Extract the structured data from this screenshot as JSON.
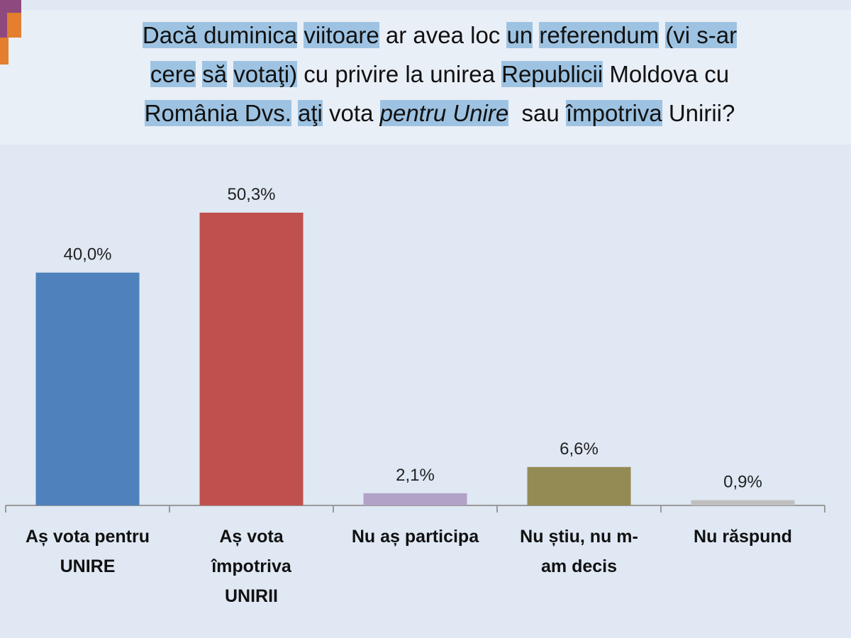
{
  "title_lines": [
    [
      {
        "t": "Dacă duminica",
        "h": true
      },
      {
        "t": " "
      },
      {
        "t": "viitoare",
        "h": true
      },
      {
        "t": " ar avea loc "
      },
      {
        "t": "un",
        "h": true
      },
      {
        "t": " "
      },
      {
        "t": "referendum",
        "h": true
      },
      {
        "t": " "
      },
      {
        "t": "(vi s-ar",
        "h": true
      }
    ],
    [
      {
        "t": "cere",
        "h": true
      },
      {
        "t": " "
      },
      {
        "t": "să",
        "h": true
      },
      {
        "t": " "
      },
      {
        "t": "votaţi)",
        "h": true
      },
      {
        "t": " cu privire la unirea "
      },
      {
        "t": "Republicii",
        "h": true
      },
      {
        "t": " Moldova cu"
      }
    ],
    [
      {
        "t": "România Dvs.",
        "h": true
      },
      {
        "t": " "
      },
      {
        "t": "aţi",
        "h": true
      },
      {
        "t": " vota "
      },
      {
        "t": "pentru Unire",
        "h": true,
        "i": true
      },
      {
        "t": "  sau "
      },
      {
        "t": "împotriva",
        "h": true
      },
      {
        "t": " Unirii?"
      }
    ]
  ],
  "chart_data": {
    "type": "bar",
    "title": "Dacă duminica viitoare ar avea loc un referendum (vi s-ar cere să votaţi) cu privire la unirea Republicii Moldova cu România Dvs. aţi vota pentru Unire  sau împotriva Unirii?",
    "categories": [
      "Aș vota pentru\nUNIRE",
      "Aș vota\nîmpotriva\nUNIRII",
      "Nu aș participa",
      "Nu știu, nu m-\nam decis",
      "Nu răspund"
    ],
    "values": [
      40.0,
      50.3,
      2.1,
      6.6,
      0.9
    ],
    "labels": [
      "40,0%",
      "50,3%",
      "2,1%",
      "6,6%",
      "0,9%"
    ],
    "colors": [
      "#4f81bd",
      "#c0504d",
      "#b3a2c7",
      "#948a54",
      "#bfbfbf"
    ],
    "xlabel": "",
    "ylabel": "",
    "ylim": [
      0,
      55
    ],
    "grid": false
  }
}
